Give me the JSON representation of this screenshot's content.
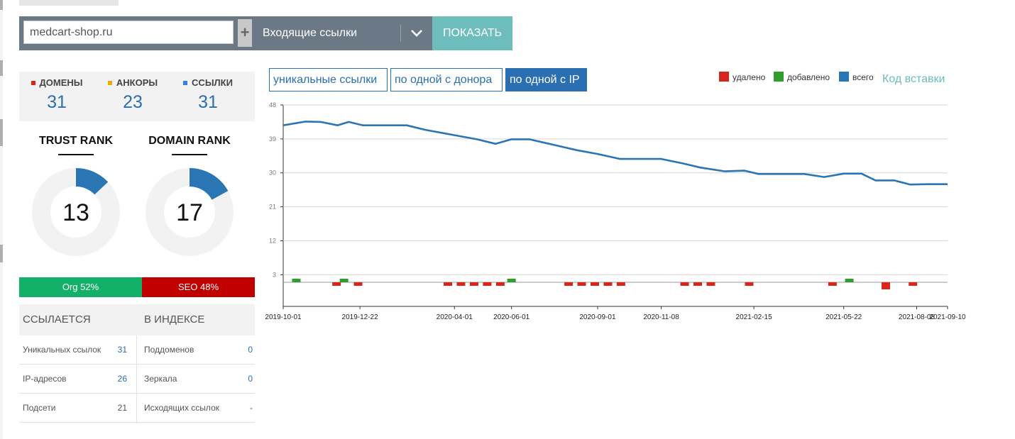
{
  "search": {
    "domain": "medcart-shop.ru",
    "plus": "+",
    "report": "Входящие ссылки",
    "show": "ПОКАЗАТЬ"
  },
  "stats": [
    {
      "label": "ДОМЕНЫ",
      "value": "31",
      "color": "#d9261c"
    },
    {
      "label": "АНКОРЫ",
      "value": "23",
      "color": "#f0a800"
    },
    {
      "label": "ССЫЛКИ",
      "value": "31",
      "color": "#3b7ddd"
    }
  ],
  "ranks": {
    "trust": {
      "title": "TRUST RANK",
      "value": "13",
      "fraction": 0.13
    },
    "domain": {
      "title": "DOMAIN RANK",
      "value": "17",
      "fraction": 0.17
    }
  },
  "traffic": {
    "org": "Org 52%",
    "seo": "SEO 48%",
    "org_color": "#13b06a",
    "seo_color": "#c00000"
  },
  "info": {
    "head_left": "ССЫЛАЕТСЯ",
    "head_right": "В ИНДЕКСЕ",
    "rows": [
      {
        "l_label": "Уникальных ссылок",
        "l_value": "31",
        "r_label": "Поддоменов",
        "r_value": "0"
      },
      {
        "l_label": "IP-адресов",
        "l_value": "26",
        "r_label": "Зеркала",
        "r_value": "0"
      },
      {
        "l_label": "Подсети",
        "l_value": "21",
        "r_label": "Исходящих ссылок",
        "r_value": "-"
      }
    ]
  },
  "tabs": [
    "уникальные ссылки",
    "по одной с донора",
    "по одной с IP"
  ],
  "legend": {
    "removed": "удалено",
    "added": "добавлено",
    "total": "всего",
    "removed_color": "#d9261c",
    "added_color": "#2e9e2e",
    "total_color": "#2a75b3"
  },
  "embed_link": "Код вставки",
  "chart_data": {
    "type": "line",
    "x_start": "2019-10-01",
    "x_end": "2021-09-10",
    "x_ticks": [
      "2019-10-01",
      "2019-12-22",
      "2020-04-01",
      "2020-06-01",
      "2020-09-01",
      "2020-11-08",
      "2021-02-15",
      "2021-05-22",
      "2021-08-08",
      "2021-09-10"
    ],
    "y_ticks": [
      3,
      12,
      21,
      30,
      39,
      48
    ],
    "ylim": [
      -6,
      48
    ],
    "grid": true,
    "series": [
      {
        "name": "всего",
        "type": "line",
        "points": [
          [
            "2019-10-01",
            42.6
          ],
          [
            "2019-10-25",
            43.6
          ],
          [
            "2019-11-10",
            43.5
          ],
          [
            "2019-11-28",
            42.6
          ],
          [
            "2019-12-10",
            43.5
          ],
          [
            "2019-12-25",
            42.6
          ],
          [
            "2020-01-20",
            42.6
          ],
          [
            "2020-02-10",
            42.6
          ],
          [
            "2020-03-01",
            41.4
          ],
          [
            "2020-04-01",
            40.0
          ],
          [
            "2020-04-25",
            38.9
          ],
          [
            "2020-05-15",
            37.7
          ],
          [
            "2020-06-01",
            38.9
          ],
          [
            "2020-06-20",
            38.9
          ],
          [
            "2020-07-15",
            37.5
          ],
          [
            "2020-08-10",
            36.0
          ],
          [
            "2020-09-01",
            35.0
          ],
          [
            "2020-09-25",
            33.7
          ],
          [
            "2020-10-15",
            33.7
          ],
          [
            "2020-11-08",
            33.7
          ],
          [
            "2020-12-01",
            32.5
          ],
          [
            "2020-12-20",
            31.4
          ],
          [
            "2021-01-15",
            30.4
          ],
          [
            "2021-02-05",
            30.6
          ],
          [
            "2021-02-20",
            29.7
          ],
          [
            "2021-03-15",
            29.7
          ],
          [
            "2021-04-10",
            29.7
          ],
          [
            "2021-05-01",
            28.9
          ],
          [
            "2021-05-22",
            29.8
          ],
          [
            "2021-06-10",
            29.8
          ],
          [
            "2021-06-25",
            28.0
          ],
          [
            "2021-07-15",
            28.0
          ],
          [
            "2021-08-01",
            26.9
          ],
          [
            "2021-08-20",
            27.0
          ],
          [
            "2021-09-10",
            27.0
          ]
        ]
      },
      {
        "name": "добавлено",
        "type": "bar",
        "points": [
          [
            "2019-10-15",
            1
          ],
          [
            "2019-12-05",
            1
          ],
          [
            "2020-06-01",
            1
          ],
          [
            "2021-05-28",
            1
          ]
        ]
      },
      {
        "name": "удалено",
        "type": "bar",
        "points": [
          [
            "2019-11-27",
            -1
          ],
          [
            "2019-12-20",
            -1
          ],
          [
            "2020-03-25",
            -1
          ],
          [
            "2020-04-08",
            -1
          ],
          [
            "2020-04-22",
            -1
          ],
          [
            "2020-05-06",
            -1
          ],
          [
            "2020-05-20",
            -1
          ],
          [
            "2020-08-01",
            -1
          ],
          [
            "2020-08-15",
            -1
          ],
          [
            "2020-08-29",
            -1
          ],
          [
            "2020-09-12",
            -1
          ],
          [
            "2020-09-26",
            -1
          ],
          [
            "2020-12-03",
            -1
          ],
          [
            "2020-12-17",
            -1
          ],
          [
            "2020-12-31",
            -1
          ],
          [
            "2021-02-10",
            -1
          ],
          [
            "2021-05-10",
            -1
          ],
          [
            "2021-07-06",
            -2
          ],
          [
            "2021-08-04",
            -1
          ]
        ]
      }
    ]
  }
}
